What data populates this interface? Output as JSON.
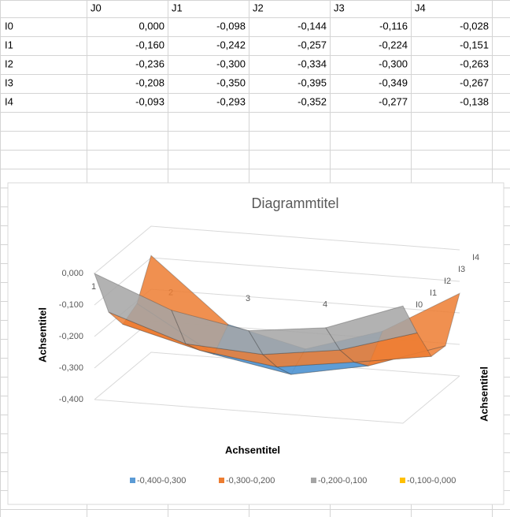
{
  "spreadsheet": {
    "columns": [
      "J0",
      "J1",
      "J2",
      "J3",
      "J4"
    ],
    "rows": [
      {
        "label": "I0",
        "cells": [
          "0,000",
          "-0,098",
          "-0,144",
          "-0,116",
          "-0,028"
        ]
      },
      {
        "label": "I1",
        "cells": [
          "-0,160",
          "-0,242",
          "-0,257",
          "-0,224",
          "-0,151"
        ]
      },
      {
        "label": "I2",
        "cells": [
          "-0,236",
          "-0,300",
          "-0,334",
          "-0,300",
          "-0,263"
        ]
      },
      {
        "label": "I3",
        "cells": [
          "-0,208",
          "-0,350",
          "-0,395",
          "-0,349",
          "-0,267"
        ]
      },
      {
        "label": "I4",
        "cells": [
          "-0,093",
          "-0,293",
          "-0,352",
          "-0,277",
          "-0,138"
        ]
      }
    ]
  },
  "chart_data": {
    "type": "surface",
    "title": "Diagrammtitel",
    "x_axis_label": "Achsentitel",
    "z_axis_label": "Achsentitel",
    "depth_axis_label": "Achsentitel",
    "categories": [
      "1",
      "2",
      "3",
      "4",
      null
    ],
    "series": [
      {
        "name": "I0",
        "values": [
          0,
          -0.098,
          -0.144,
          -0.116,
          -0.028
        ]
      },
      {
        "name": "I1",
        "values": [
          -0.16,
          -0.242,
          -0.257,
          -0.224,
          -0.151
        ]
      },
      {
        "name": "I2",
        "values": [
          -0.236,
          -0.3,
          -0.334,
          -0.3,
          -0.263
        ]
      },
      {
        "name": "I3",
        "values": [
          -0.208,
          -0.35,
          -0.395,
          -0.349,
          -0.267
        ]
      },
      {
        "name": "I4",
        "values": [
          -0.093,
          -0.293,
          -0.352,
          -0.277,
          -0.138
        ]
      }
    ],
    "zlim": [
      -0.4,
      0
    ],
    "zticks": [
      {
        "value": 0,
        "label": "0,000"
      },
      {
        "value": -0.1,
        "label": "-0,100"
      },
      {
        "value": -0.2,
        "label": "-0,200"
      },
      {
        "value": -0.3,
        "label": "-0,300"
      },
      {
        "value": -0.4,
        "label": "-0,400"
      }
    ],
    "bands": [
      {
        "name": "-0,400-0,300",
        "color": "#5b9bd5",
        "range": [
          -0.4,
          -0.3
        ]
      },
      {
        "name": "-0,300-0,200",
        "color": "#ed7d31",
        "range": [
          -0.3,
          -0.2
        ]
      },
      {
        "name": "-0,200-0,100",
        "color": "#a5a5a5",
        "range": [
          -0.2,
          -0.1
        ]
      },
      {
        "name": "-0,100-0,000",
        "color": "#ffc000",
        "range": [
          -0.1,
          0
        ]
      }
    ],
    "grid": true
  }
}
